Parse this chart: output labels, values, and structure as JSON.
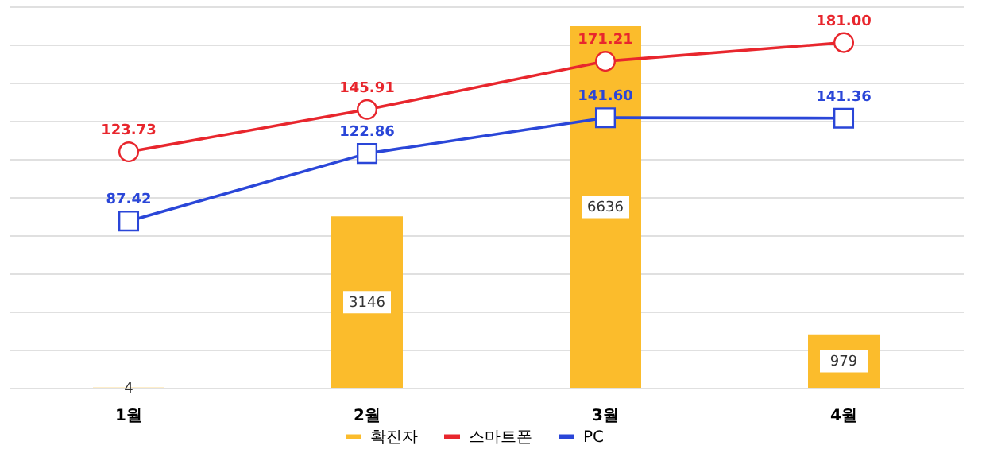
{
  "chart_data": {
    "type": "bar",
    "categories": [
      "1월",
      "2월",
      "3월",
      "4월"
    ],
    "series": [
      {
        "name": "확진자",
        "color": "#fbbc2c",
        "values": [
          4,
          3146,
          6636,
          979
        ],
        "value_labels": [
          "4",
          "3146",
          "6636",
          "979"
        ]
      },
      {
        "name": "스마트폰",
        "type": "line",
        "axis": "y2",
        "color": "#e8262d",
        "marker": "circle",
        "values": [
          123.73,
          145.91,
          171.21,
          181.0
        ],
        "value_labels": [
          "123.73",
          "145.91",
          "171.21",
          "181.00"
        ]
      },
      {
        "name": "PC",
        "type": "line",
        "axis": "y2",
        "color": "#2a46d8",
        "marker": "square",
        "values": [
          87.42,
          122.86,
          141.6,
          141.36
        ],
        "value_labels": [
          "87.42",
          "122.86",
          "141.60",
          "141.36"
        ]
      }
    ],
    "grid": "y",
    "tick_labels": "x",
    "legend": "bottom"
  }
}
